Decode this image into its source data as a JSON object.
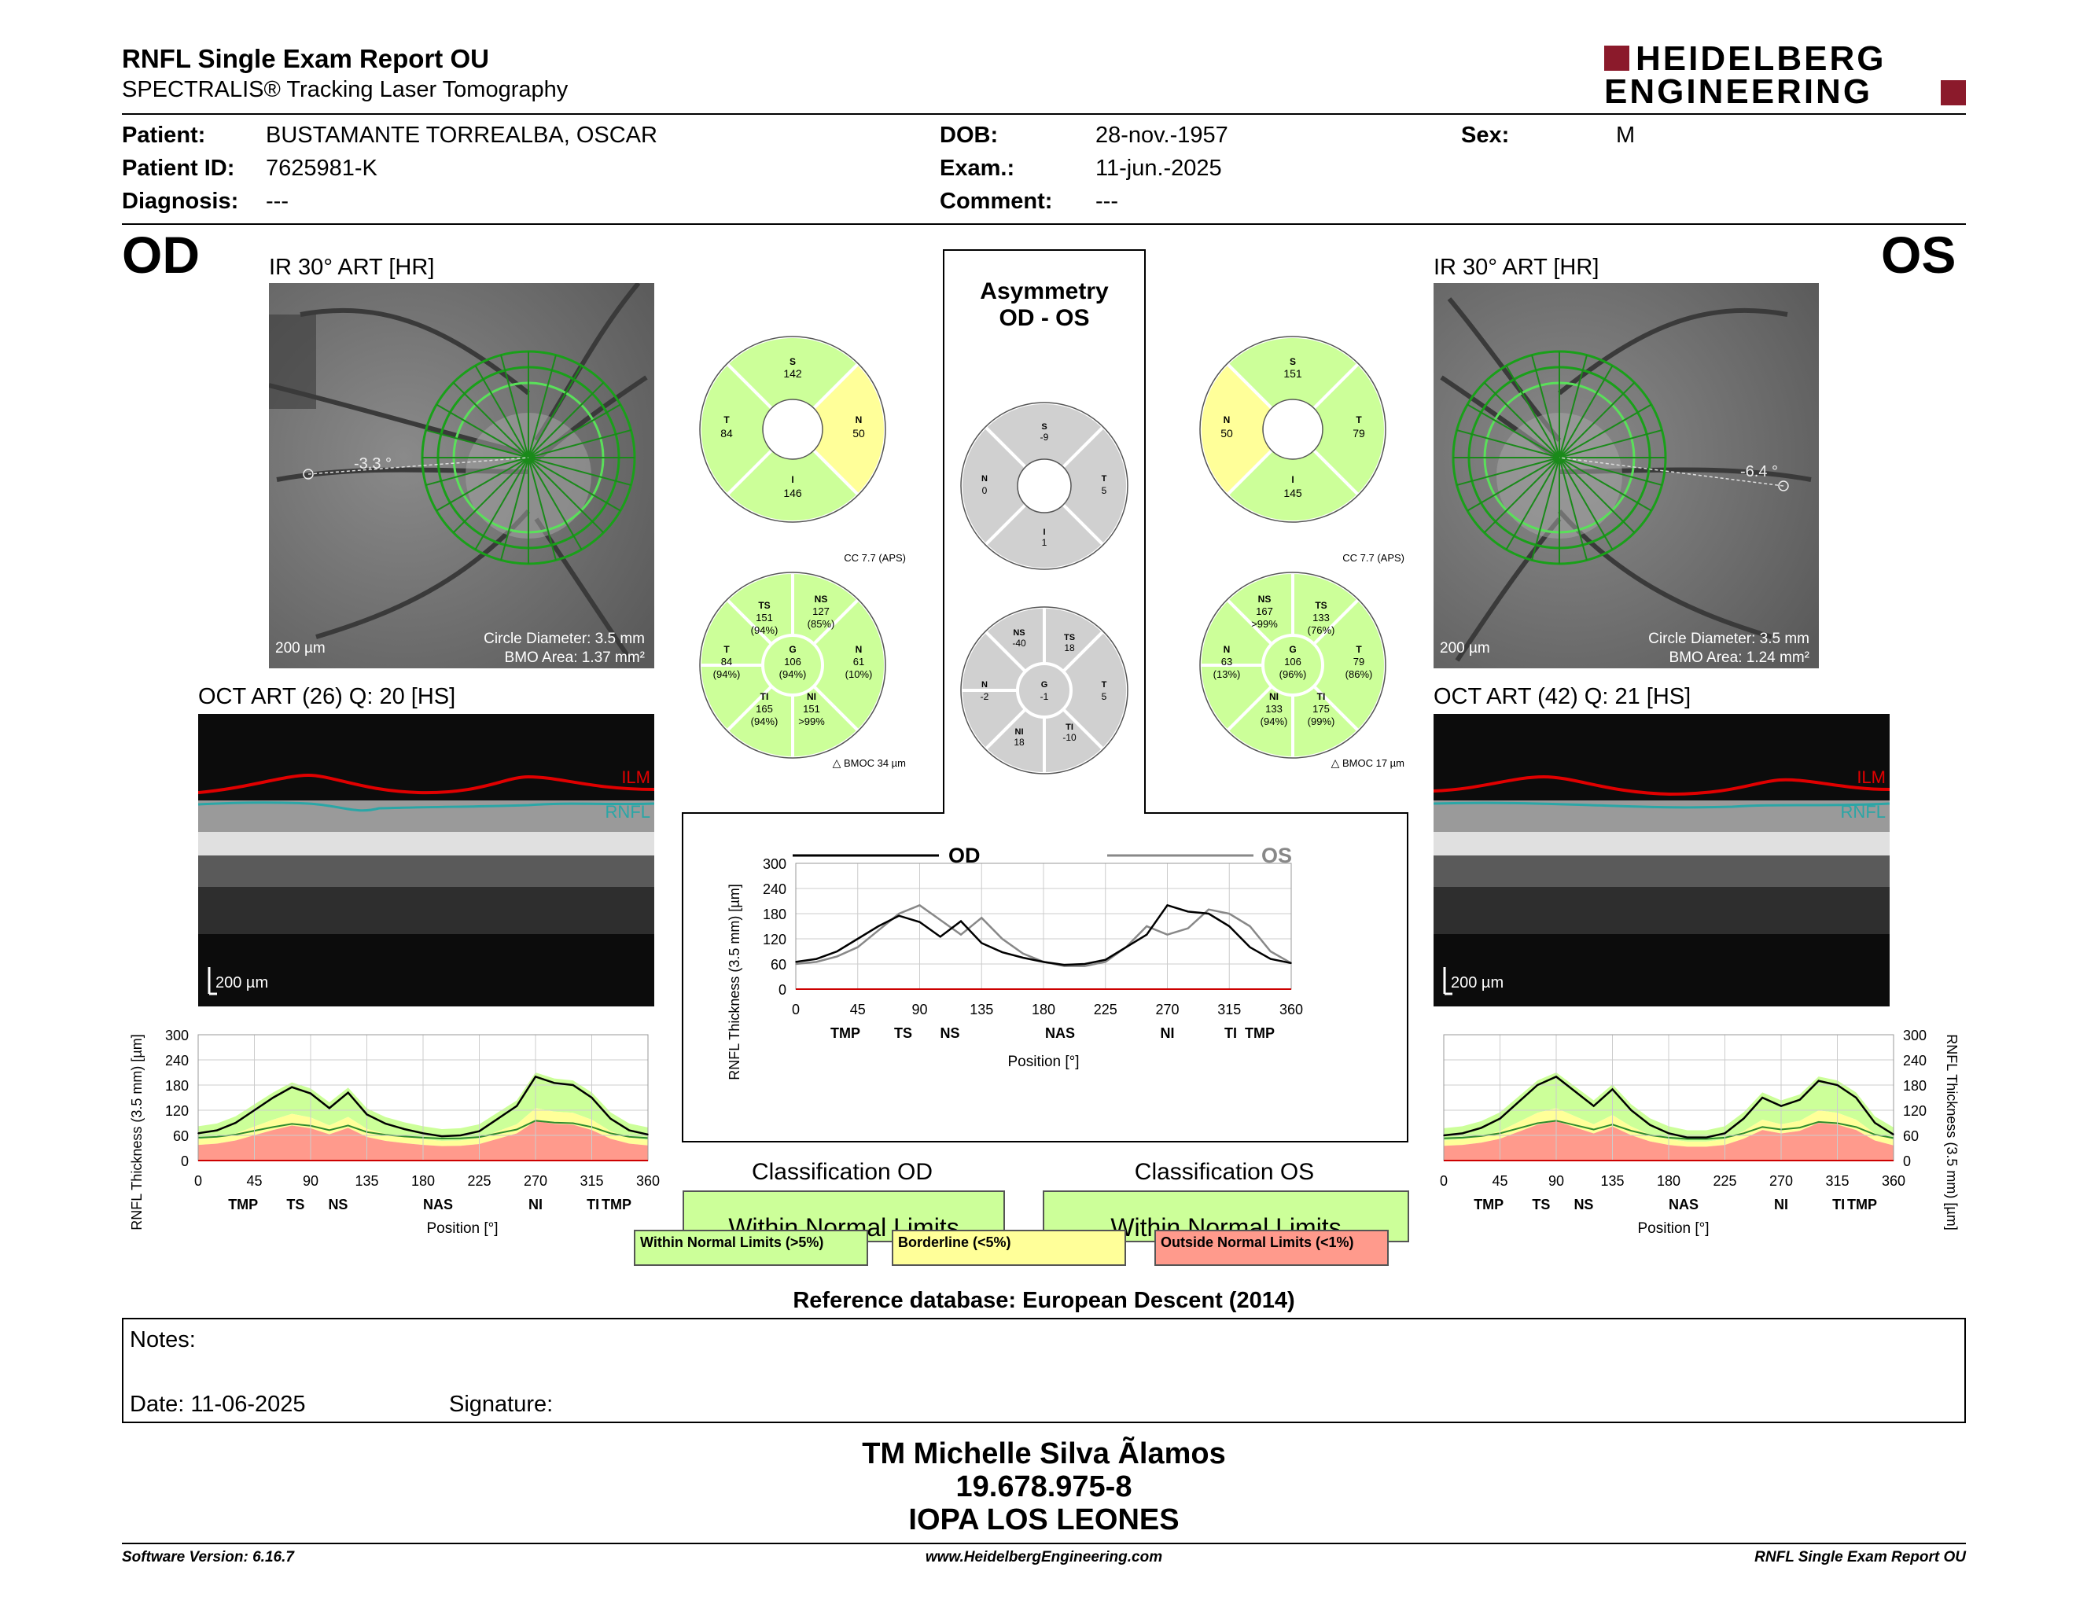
{
  "header": {
    "title": "RNFL Single Exam Report OU",
    "subtitle": "SPECTRALIS® Tracking Laser Tomography",
    "logo_line1": "HEIDELBERG",
    "logo_line2": "ENGINEERING"
  },
  "patient": {
    "patient_label": "Patient:",
    "patient_value": "BUSTAMANTE TORREALBA, OSCAR",
    "id_label": "Patient ID:",
    "id_value": "7625981-K",
    "diagnosis_label": "Diagnosis:",
    "diagnosis_value": "---",
    "dob_label": "DOB:",
    "dob_value": "28-nov.-1957",
    "exam_label": "Exam.:",
    "exam_value": "11-jun.-2025",
    "comment_label": "Comment:",
    "comment_value": "---",
    "sex_label": "Sex:",
    "sex_value": "M"
  },
  "od": {
    "eye_label": "OD",
    "ir_title": "IR 30° ART [HR]",
    "angle": "-3.3 °",
    "scale": "200 µm",
    "circle_diameter": "Circle Diameter: 3.5 mm",
    "bmo_area": "BMO Area: 1.37 mm²",
    "oct_title": "OCT ART (26) Q: 20 [HS]",
    "ilm": "ILM",
    "rnfl": "RNFL",
    "oct_scale": "200 µm",
    "sectors4": {
      "S": "142",
      "T": "84",
      "N": "50",
      "I": "146"
    },
    "cc": "CC 7.7 (APS)",
    "bmoc": "BMOC 34 µm",
    "sectors6": {
      "TS": "TS",
      "TS_v": "151",
      "TS_p": "(94%)",
      "NS": "NS",
      "NS_v": "127",
      "NS_p": "(85%)",
      "T": "T",
      "T_v": "84",
      "T_p": "(94%)",
      "G": "G",
      "G_v": "106",
      "G_p": "(94%)",
      "N": "N",
      "N_v": "61",
      "N_p": "(10%)",
      "TI": "TI",
      "TI_v": "165",
      "TI_p": "(94%)",
      "NI": "NI",
      "NI_v": "151",
      "NI_p": ">99%"
    },
    "classification_title": "Classification OD",
    "classification": "Within Normal Limits"
  },
  "os": {
    "eye_label": "OS",
    "ir_title": "IR 30° ART [HR]",
    "angle": "-6.4 °",
    "scale": "200 µm",
    "circle_diameter": "Circle Diameter: 3.5 mm",
    "bmo_area": "BMO Area: 1.24 mm²",
    "oct_title": "OCT ART (42) Q: 21 [HS]",
    "ilm": "ILM",
    "rnfl": "RNFL",
    "oct_scale": "200 µm",
    "sectors4": {
      "S": "151",
      "T": "79",
      "N": "50",
      "I": "145"
    },
    "cc": "CC 7.7 (APS)",
    "bmoc": "BMOC 17 µm",
    "sectors6": {
      "TS": "TS",
      "TS_v": "133",
      "TS_p": "(76%)",
      "NS": "NS",
      "NS_v": "167",
      "NS_p": ">99%",
      "T": "T",
      "T_v": "79",
      "T_p": "(86%)",
      "G": "G",
      "G_v": "106",
      "G_p": "(96%)",
      "N": "N",
      "N_v": "63",
      "N_p": "(13%)",
      "TI": "TI",
      "TI_v": "175",
      "TI_p": "(99%)",
      "NI": "NI",
      "NI_v": "133",
      "NI_p": "(94%)"
    },
    "classification_title": "Classification OS",
    "classification": "Within Normal Limits"
  },
  "asymmetry": {
    "title1": "Asymmetry",
    "title2": "OD - OS",
    "sectors4": {
      "S": "-9",
      "N": "0",
      "T": "5",
      "I": "1"
    },
    "sectors6": {
      "NS": "-40",
      "TS": "18",
      "N": "-2",
      "G": "-1",
      "T": "5",
      "NI": "18",
      "TI": "-10"
    }
  },
  "sector_letters": {
    "S": "S",
    "T": "T",
    "N": "N",
    "I": "I",
    "G": "G"
  },
  "axis": {
    "y_label": "RNFL Thickness (3.5 mm) [µm]",
    "x_label": "Position [°]",
    "y_ticks": [
      "0",
      "60",
      "120",
      "180",
      "240",
      "300"
    ],
    "x_ticks": [
      "0",
      "45",
      "90",
      "135",
      "180",
      "225",
      "270",
      "315",
      "360"
    ],
    "region_labels": [
      "TMP",
      "TS",
      "NS",
      "NAS",
      "NI",
      "TI",
      "TMP"
    ]
  },
  "legend": {
    "od": "OD",
    "os": "OS",
    "within": "Within Normal Limits (>5%)",
    "borderline": "Borderline (<5%)",
    "outside": "Outside Normal Limits (<1%)"
  },
  "colors": {
    "within": "#ccff99",
    "borderline": "#ffff99",
    "outside": "#ff9a8c",
    "ilm": "#e00000",
    "rnfl": "#2aa6a6"
  },
  "reference": "Reference database: European Descent (2014)",
  "notes": {
    "label": "Notes:",
    "date": "Date: 11-06-2025",
    "signature": "Signature:"
  },
  "signoff": {
    "name": "TM Michelle Silva Ãlamos",
    "id": "19.678.975-8",
    "place": "IOPA LOS LEONES"
  },
  "footer": {
    "software": "Software Version: 6.16.7",
    "url": "www.HeidelbergEngineering.com",
    "report": "RNFL Single Exam Report OU"
  },
  "chart_data": [
    {
      "type": "line",
      "name": "OD thickness profile",
      "x": [
        0,
        15,
        30,
        45,
        60,
        75,
        90,
        105,
        120,
        135,
        150,
        165,
        180,
        195,
        210,
        225,
        240,
        255,
        270,
        285,
        300,
        315,
        330,
        345,
        360
      ],
      "values": [
        65,
        72,
        90,
        120,
        150,
        175,
        160,
        125,
        162,
        110,
        88,
        75,
        65,
        58,
        60,
        70,
        100,
        130,
        200,
        185,
        180,
        150,
        100,
        72,
        62
      ],
      "xlim": [
        0,
        360
      ],
      "ylim": [
        0,
        300
      ]
    },
    {
      "type": "line",
      "name": "OS thickness profile",
      "x": [
        0,
        15,
        30,
        45,
        60,
        75,
        90,
        105,
        120,
        135,
        150,
        165,
        180,
        195,
        210,
        225,
        240,
        255,
        270,
        285,
        300,
        315,
        330,
        345,
        360
      ],
      "values": [
        60,
        65,
        78,
        100,
        140,
        180,
        200,
        165,
        130,
        170,
        120,
        85,
        65,
        55,
        55,
        65,
        100,
        150,
        130,
        145,
        190,
        180,
        150,
        90,
        62
      ],
      "xlim": [
        0,
        360
      ],
      "ylim": [
        0,
        300
      ]
    }
  ]
}
